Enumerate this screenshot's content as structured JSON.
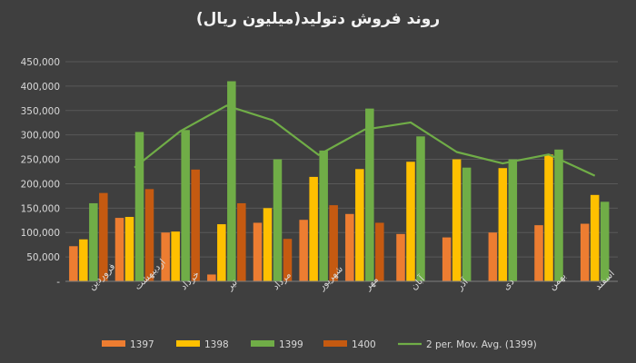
{
  "chart_data": {
    "type": "bar",
    "title": "روند فروش دتولید(میلیون ریال)",
    "categories": [
      "فروردین",
      "اردیبهشت",
      "خرداد",
      "تیر",
      "مرداد",
      "شهریور",
      "مهر",
      "آبان",
      "آذر",
      "دی",
      "بهمن",
      "اسفند"
    ],
    "ylim": [
      0,
      450000
    ],
    "yticks": [
      "-",
      "50,000",
      "100,000",
      "150,000",
      "200,000",
      "250,000",
      "300,000",
      "350,000",
      "400,000",
      "450,000"
    ],
    "grid": true,
    "legend_position": "bottom",
    "series": [
      {
        "name": "1397",
        "color": "#ed7d31",
        "values": [
          72000,
          130000,
          100000,
          14000,
          120000,
          126000,
          138000,
          97000,
          90000,
          100000,
          115000,
          118000
        ]
      },
      {
        "name": "1398",
        "color": "#ffc000",
        "values": [
          86000,
          132000,
          102000,
          117000,
          150000,
          214000,
          230000,
          245000,
          250000,
          232000,
          260000,
          177000
        ]
      },
      {
        "name": "1399",
        "color": "#70ad47",
        "values": [
          160000,
          306000,
          310000,
          410000,
          250000,
          268000,
          354000,
          297000,
          233000,
          250000,
          270000,
          163000
        ]
      },
      {
        "name": "1400",
        "color": "#c55a11",
        "values": [
          181000,
          189000,
          229000,
          160000,
          87000,
          156000,
          120000,
          null,
          null,
          null,
          null,
          null
        ]
      }
    ],
    "moving_average": {
      "name": "2 per. Mov. Avg. (1399)",
      "color": "#70ad47",
      "values": [
        null,
        233000,
        308000,
        360000,
        330000,
        259000,
        311000,
        325600,
        265000,
        241500,
        260000,
        216500
      ]
    }
  }
}
